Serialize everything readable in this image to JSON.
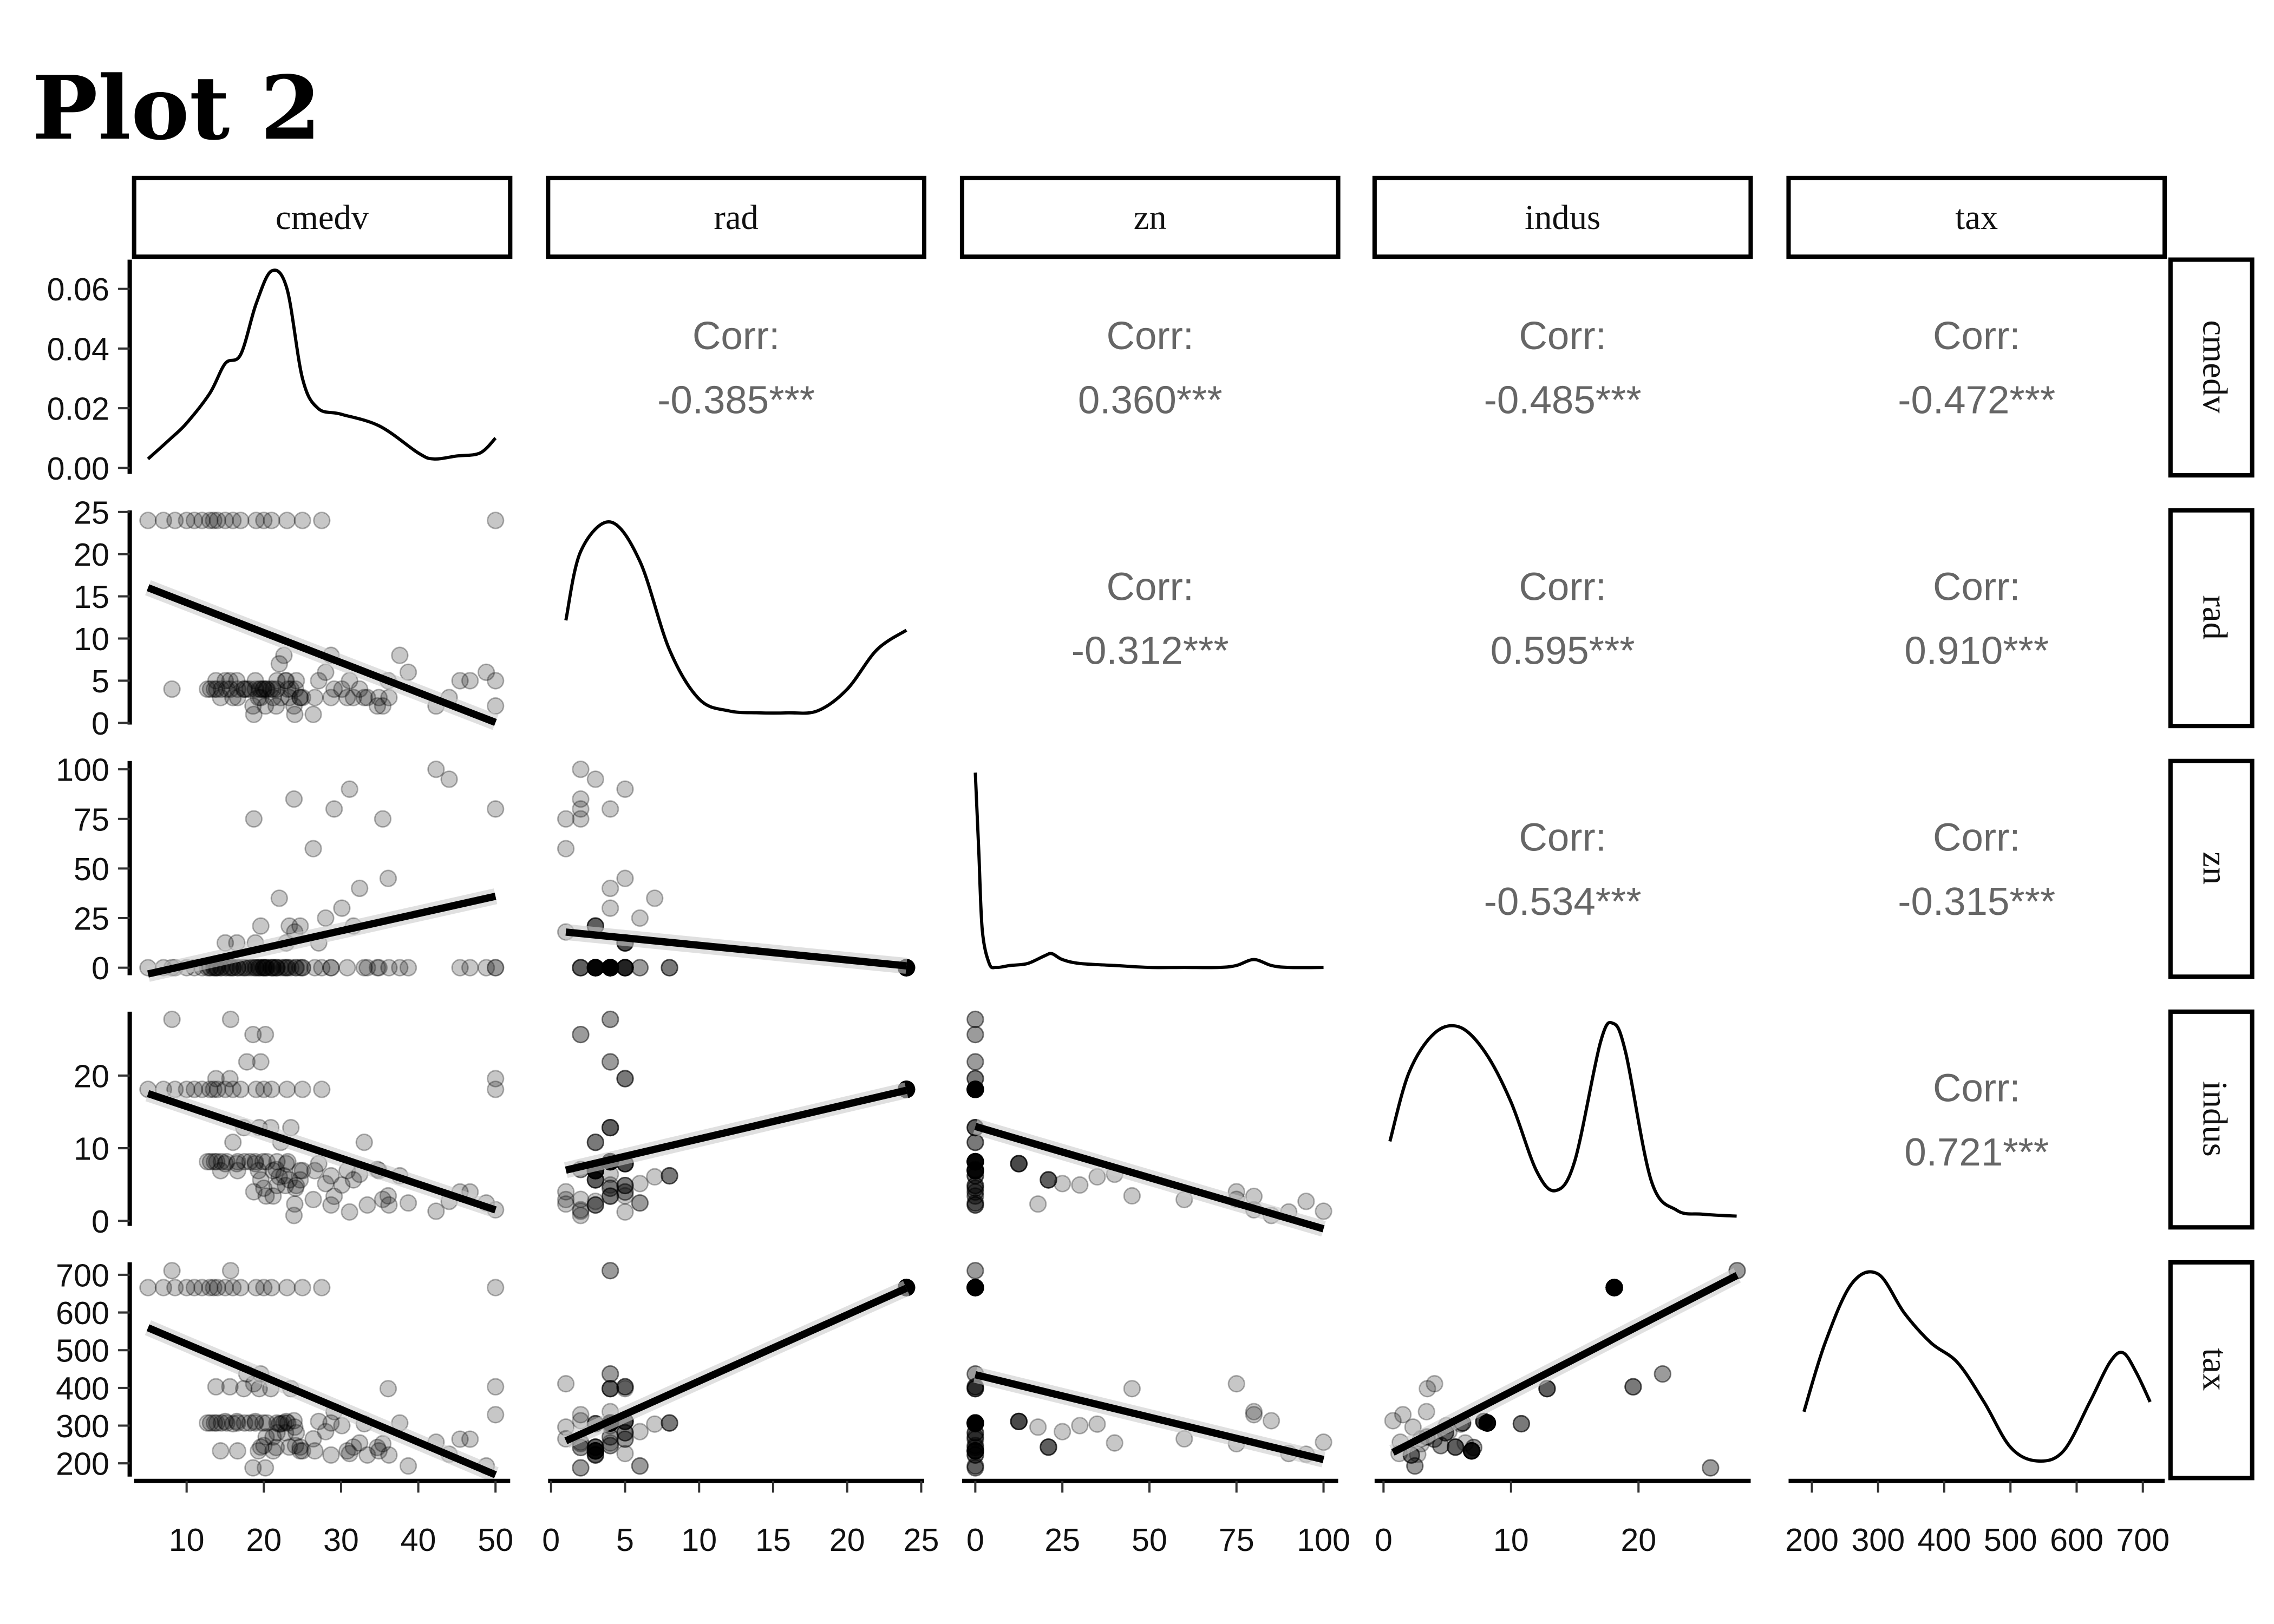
{
  "title": "Plot 2",
  "chart_data": {
    "type": "scatter",
    "subtype": "pairs-matrix",
    "title": "Plot 2",
    "variables": [
      "cmedv",
      "rad",
      "zn",
      "indus",
      "tax"
    ],
    "ranges": {
      "cmedv": [
        3.2,
        51.9
      ],
      "rad": [
        -0.2,
        25.2
      ],
      "zn": [
        -3.8,
        104.2
      ],
      "indus": [
        -0.7,
        28.8
      ],
      "tax": [
        164.8,
        733
      ]
    },
    "density_range_cmedv": [
      -0.002,
      0.0698
    ],
    "x_ticks": {
      "cmedv": [
        10,
        20,
        30,
        40,
        50
      ],
      "rad": [
        0,
        5,
        10,
        15,
        20,
        25
      ],
      "zn": [
        0,
        25,
        50,
        75,
        100
      ],
      "indus": [
        0,
        10,
        20
      ],
      "tax": [
        200,
        300,
        400,
        500,
        600,
        700
      ]
    },
    "y_ticks": {
      "cmedv": [
        "0.00",
        "0.02",
        "0.04",
        "0.06"
      ],
      "rad": [
        0,
        5,
        10,
        15,
        20,
        25
      ],
      "zn": [
        0,
        25,
        50,
        75,
        100
      ],
      "indus": [
        0,
        10,
        20
      ],
      "tax": [
        200,
        300,
        400,
        500,
        600,
        700
      ]
    },
    "correlations": [
      {
        "row": "cmedv",
        "col": "rad",
        "label": "Corr:",
        "value": "-0.385***"
      },
      {
        "row": "cmedv",
        "col": "zn",
        "label": "Corr:",
        "value": "0.360***"
      },
      {
        "row": "cmedv",
        "col": "indus",
        "label": "Corr:",
        "value": "-0.485***"
      },
      {
        "row": "cmedv",
        "col": "tax",
        "label": "Corr:",
        "value": "-0.472***"
      },
      {
        "row": "rad",
        "col": "zn",
        "label": "Corr:",
        "value": "-0.312***"
      },
      {
        "row": "rad",
        "col": "indus",
        "label": "Corr:",
        "value": "0.595***"
      },
      {
        "row": "rad",
        "col": "tax",
        "label": "Corr:",
        "value": "0.910***"
      },
      {
        "row": "zn",
        "col": "indus",
        "label": "Corr:",
        "value": "-0.534***"
      },
      {
        "row": "zn",
        "col": "tax",
        "label": "Corr:",
        "value": "-0.315***"
      },
      {
        "row": "indus",
        "col": "tax",
        "label": "Corr:",
        "value": "0.721***"
      }
    ],
    "fits": [
      {
        "y": "rad",
        "x": "cmedv",
        "intercept": 17.8,
        "slope": -0.355
      },
      {
        "y": "zn",
        "x": "cmedv",
        "intercept": -7.5,
        "slope": 0.87
      },
      {
        "y": "indus",
        "x": "cmedv",
        "intercept": 19.3,
        "slope": -0.356
      },
      {
        "y": "tax",
        "x": "cmedv",
        "intercept": 603,
        "slope": -8.67
      },
      {
        "y": "zn",
        "x": "rad",
        "intercept": 18.7,
        "slope": -0.74
      },
      {
        "y": "indus",
        "x": "rad",
        "intercept": 6.5,
        "slope": 0.478
      },
      {
        "y": "tax",
        "x": "rad",
        "intercept": 242,
        "slope": 17.6
      },
      {
        "y": "indus",
        "x": "zn",
        "intercept": 13,
        "slope": -0.141
      },
      {
        "y": "tax",
        "x": "zn",
        "intercept": 435,
        "slope": -2.25
      },
      {
        "y": "tax",
        "x": "indus",
        "intercept": 216,
        "slope": 17.4
      }
    ],
    "densities": {
      "cmedv": {
        "x": [
          5,
          8,
          10,
          13,
          15,
          17,
          19,
          21,
          23,
          25,
          27,
          30,
          35,
          40,
          42,
          45,
          48,
          50
        ],
        "y": [
          0.003,
          0.01,
          0.015,
          0.025,
          0.035,
          0.038,
          0.055,
          0.066,
          0.06,
          0.03,
          0.02,
          0.018,
          0.014,
          0.005,
          0.003,
          0.004,
          0.005,
          0.01
        ]
      },
      "rad": {
        "x": [
          1,
          2,
          4,
          6,
          8,
          10,
          12,
          14,
          16,
          18,
          20,
          22,
          24
        ],
        "y": [
          0.5,
          0.85,
          1,
          0.8,
          0.35,
          0.1,
          0.04,
          0.03,
          0.03,
          0.04,
          0.15,
          0.35,
          0.45
        ]
      },
      "zn": {
        "x": [
          0,
          1,
          2,
          4,
          6,
          10,
          15,
          20,
          22,
          25,
          30,
          40,
          50,
          60,
          70,
          75,
          80,
          85,
          90,
          100
        ],
        "y": [
          1,
          0.6,
          0.2,
          0.03,
          0.01,
          0.02,
          0.03,
          0.07,
          0.08,
          0.05,
          0.03,
          0.02,
          0.01,
          0.01,
          0.01,
          0.02,
          0.05,
          0.02,
          0.01,
          0.01
        ]
      },
      "indus": {
        "x": [
          0.5,
          2,
          4,
          6,
          8,
          10,
          12,
          13.5,
          15,
          17,
          18,
          19,
          21,
          23,
          25,
          27.7
        ],
        "y": [
          0.4,
          0.75,
          0.95,
          0.98,
          0.85,
          0.6,
          0.25,
          0.15,
          0.3,
          0.9,
          1,
          0.85,
          0.2,
          0.05,
          0.03,
          0.02
        ]
      },
      "tax": {
        "x": [
          188,
          220,
          260,
          300,
          340,
          380,
          420,
          460,
          500,
          540,
          580,
          620,
          650,
          670,
          690,
          711
        ],
        "y": [
          0.3,
          0.65,
          0.95,
          1,
          0.8,
          0.65,
          0.55,
          0.35,
          0.12,
          0.05,
          0.1,
          0.35,
          0.55,
          0.6,
          0.5,
          0.35
        ]
      }
    },
    "points_columns": [
      "cmedv",
      "rad",
      "zn",
      "indus",
      "tax"
    ],
    "points": [
      [
        5,
        24,
        0,
        18.1,
        666
      ],
      [
        7,
        24,
        0,
        18.1,
        666
      ],
      [
        8.5,
        24,
        0,
        18.1,
        666
      ],
      [
        10,
        24,
        0,
        18.1,
        666
      ],
      [
        11,
        24,
        0,
        18.1,
        666
      ],
      [
        12,
        24,
        0,
        18.1,
        666
      ],
      [
        13,
        24,
        0,
        18.1,
        666
      ],
      [
        13.5,
        24,
        0,
        18.1,
        666
      ],
      [
        14,
        24,
        0,
        18.1,
        666
      ],
      [
        15,
        24,
        0,
        18.1,
        666
      ],
      [
        16,
        24,
        0,
        18.1,
        666
      ],
      [
        17,
        24,
        0,
        18.1,
        666
      ],
      [
        19,
        24,
        0,
        18.1,
        666
      ],
      [
        20,
        24,
        0,
        18.1,
        666
      ],
      [
        21,
        24,
        0,
        18.1,
        666
      ],
      [
        23,
        24,
        0,
        18.1,
        666
      ],
      [
        25,
        24,
        0,
        18.1,
        666
      ],
      [
        27.5,
        24,
        0,
        18.1,
        666
      ],
      [
        50,
        24,
        0,
        18.1,
        666
      ],
      [
        24,
        1,
        18,
        2.31,
        296
      ],
      [
        21.6,
        2,
        0,
        7.07,
        242
      ],
      [
        34.7,
        2,
        0,
        7.07,
        242
      ],
      [
        33.4,
        3,
        0,
        2.18,
        222
      ],
      [
        36.2,
        3,
        0,
        2.18,
        222
      ],
      [
        28.7,
        3,
        0,
        2.18,
        222
      ],
      [
        22.9,
        5,
        12.5,
        7.87,
        311
      ],
      [
        27.1,
        5,
        12.5,
        7.87,
        311
      ],
      [
        16.5,
        5,
        12.5,
        7.87,
        311
      ],
      [
        18.9,
        5,
        12.5,
        7.87,
        311
      ],
      [
        15,
        5,
        12.5,
        7.87,
        311
      ],
      [
        18.9,
        4,
        0,
        8.14,
        307
      ],
      [
        21.7,
        4,
        0,
        8.14,
        307
      ],
      [
        20.4,
        4,
        0,
        8.14,
        307
      ],
      [
        18.2,
        4,
        0,
        8.14,
        307
      ],
      [
        19.9,
        4,
        0,
        8.14,
        307
      ],
      [
        23.1,
        4,
        0,
        8.14,
        307
      ],
      [
        17.5,
        4,
        0,
        8.14,
        307
      ],
      [
        13.6,
        4,
        0,
        8.14,
        307
      ],
      [
        15.2,
        4,
        0,
        8.14,
        307
      ],
      [
        14.5,
        4,
        0,
        8.14,
        307
      ],
      [
        13.9,
        4,
        0,
        8.14,
        307
      ],
      [
        16.6,
        4,
        0,
        8.14,
        307
      ],
      [
        12.7,
        4,
        0,
        8.14,
        307
      ],
      [
        13.1,
        4,
        0,
        8.14,
        307
      ],
      [
        24.7,
        3,
        0,
        6.91,
        233
      ],
      [
        30.8,
        3,
        0,
        6.91,
        233
      ],
      [
        34.9,
        3,
        0,
        6.91,
        233
      ],
      [
        26.6,
        3,
        0,
        6.91,
        233
      ],
      [
        21.2,
        3,
        0,
        6.91,
        233
      ],
      [
        19.3,
        3,
        0,
        6.91,
        233
      ],
      [
        16.6,
        3,
        0,
        6.91,
        233
      ],
      [
        14.4,
        3,
        0,
        6.91,
        233
      ],
      [
        25,
        3,
        0,
        6.91,
        233
      ],
      [
        35.4,
        2,
        75,
        2.95,
        252
      ],
      [
        24.7,
        3,
        21,
        5.64,
        243
      ],
      [
        31.6,
        3,
        21,
        5.64,
        243
      ],
      [
        23.3,
        3,
        21,
        5.64,
        243
      ],
      [
        19.6,
        3,
        21,
        5.64,
        243
      ],
      [
        18.7,
        1,
        75,
        4,
        411
      ],
      [
        16,
        3,
        0,
        10.81,
        305
      ],
      [
        22.2,
        3,
        0,
        10.81,
        305
      ],
      [
        33,
        3,
        0,
        10.81,
        305
      ],
      [
        23.5,
        4,
        0,
        12.83,
        398
      ],
      [
        19.4,
        4,
        0,
        12.83,
        398
      ],
      [
        17.4,
        4,
        0,
        12.83,
        398
      ],
      [
        20.9,
        4,
        0,
        12.83,
        398
      ],
      [
        24.2,
        5,
        0,
        4.86,
        281
      ],
      [
        21.7,
        5,
        0,
        4.86,
        281
      ],
      [
        22.8,
        5,
        0,
        4.86,
        281
      ],
      [
        24.1,
        4,
        0,
        4.49,
        247
      ],
      [
        20,
        4,
        0,
        4.49,
        247
      ],
      [
        21.2,
        4,
        0,
        3.41,
        270
      ],
      [
        20.3,
        4,
        0,
        3.41,
        270
      ],
      [
        44,
        3,
        95,
        2.68,
        224
      ],
      [
        50,
        2,
        80,
        1.52,
        329
      ],
      [
        42.3,
        2,
        100,
        1.32,
        256
      ],
      [
        31.1,
        5,
        90,
        1.22,
        226
      ],
      [
        29.1,
        4,
        80,
        3.37,
        337
      ],
      [
        36.1,
        5,
        45,
        3.44,
        398
      ],
      [
        32.4,
        4,
        40,
        6.41,
        254
      ],
      [
        26.4,
        1,
        60,
        2.93,
        265
      ],
      [
        22,
        7,
        35,
        6.06,
        304
      ],
      [
        28,
        6,
        25,
        5.13,
        284
      ],
      [
        23.9,
        2,
        85,
        0.74,
        313
      ],
      [
        30.1,
        4,
        30,
        4.93,
        300
      ],
      [
        15.7,
        4,
        0,
        27.74,
        711
      ],
      [
        8.1,
        4,
        0,
        27.74,
        711
      ],
      [
        15.6,
        5,
        0,
        19.58,
        403
      ],
      [
        50,
        5,
        0,
        19.58,
        403
      ],
      [
        13.8,
        5,
        0,
        19.58,
        403
      ],
      [
        17.8,
        4,
        0,
        21.89,
        437
      ],
      [
        19.6,
        4,
        0,
        21.89,
        437
      ],
      [
        20.2,
        2,
        0,
        25.65,
        188
      ],
      [
        18.6,
        2,
        0,
        25.65,
        188
      ],
      [
        22.6,
        8,
        0,
        6.2,
        307
      ],
      [
        28.7,
        8,
        0,
        6.2,
        307
      ],
      [
        37.6,
        8,
        0,
        6.2,
        307
      ],
      [
        45.4,
        5,
        0,
        3.97,
        264
      ],
      [
        46.7,
        5,
        0,
        3.97,
        264
      ],
      [
        38.7,
        6,
        0,
        2.46,
        193
      ],
      [
        48.8,
        6,
        0,
        2.46,
        193
      ]
    ]
  }
}
